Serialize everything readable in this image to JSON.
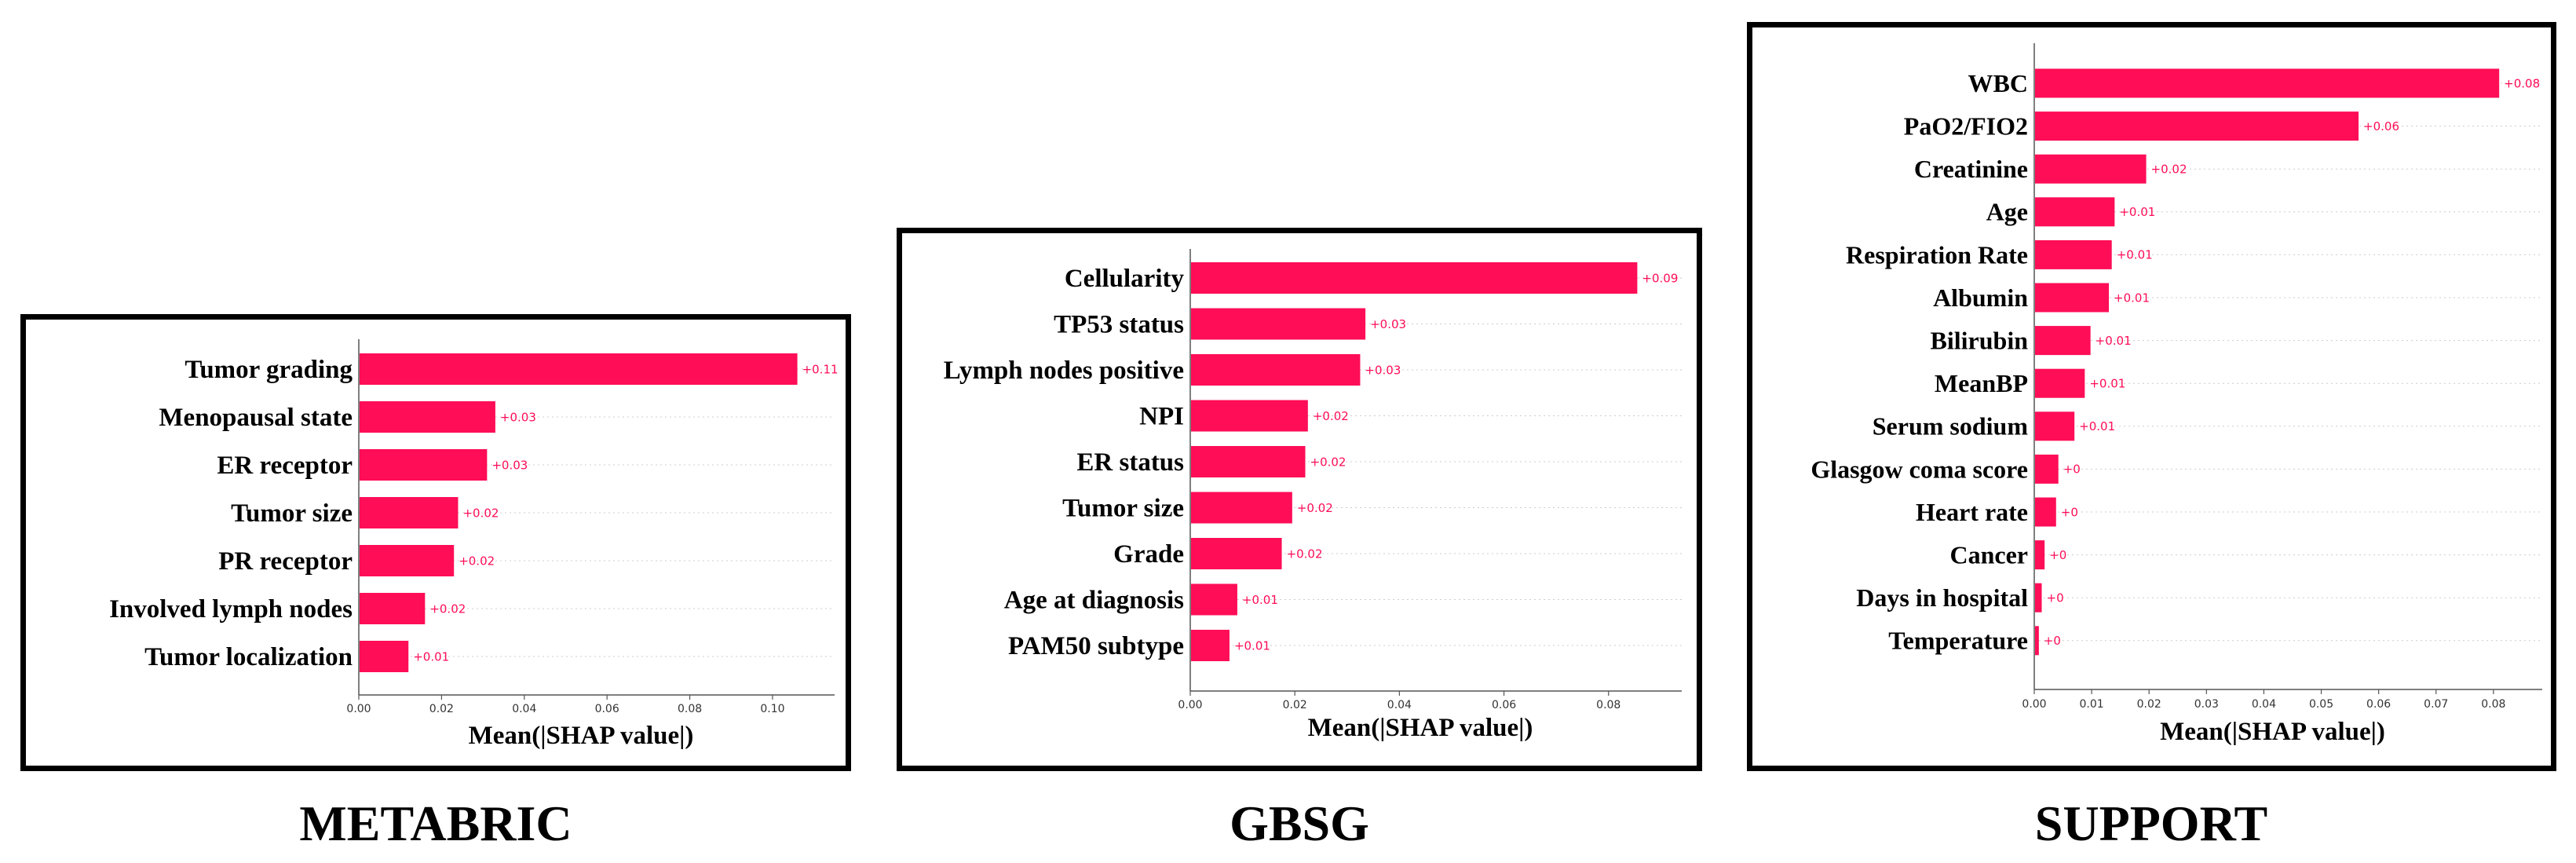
{
  "chart_data": [
    {
      "type": "bar",
      "orientation": "horizontal",
      "title": "METABRIC",
      "xlabel": "Mean(|SHAP value|)",
      "ylabel": "",
      "xlim": [
        0,
        0.115
      ],
      "xticks": [
        "0.00",
        "0.02",
        "0.04",
        "0.06",
        "0.08",
        "0.10"
      ],
      "categories": [
        "Tumor grading",
        "Menopausal state",
        "ER receptor",
        "Tumor size",
        "PR receptor",
        "Involved lymph nodes",
        "Tumor localization"
      ],
      "values": [
        0.106,
        0.033,
        0.031,
        0.024,
        0.023,
        0.016,
        0.012
      ],
      "value_labels": [
        "+0.11",
        "+0.03",
        "+0.03",
        "+0.02",
        "+0.02",
        "+0.02",
        "+0.01"
      ],
      "bar_color": "#ff0d57",
      "grid": "horizontal dotted"
    },
    {
      "type": "bar",
      "orientation": "horizontal",
      "title": "GBSG",
      "xlabel": "Mean(|SHAP value|)",
      "ylabel": "",
      "xlim": [
        0,
        0.094
      ],
      "xticks": [
        "0.00",
        "0.02",
        "0.04",
        "0.06",
        "0.08"
      ],
      "categories": [
        "Cellularity",
        "TP53 status",
        "Lymph nodes positive",
        "NPI",
        "ER status",
        "Tumor size",
        "Grade",
        "Age at diagnosis",
        "PAM50 subtype"
      ],
      "values": [
        0.0855,
        0.0335,
        0.0325,
        0.0225,
        0.022,
        0.0195,
        0.0175,
        0.009,
        0.0075
      ],
      "value_labels": [
        "+0.09",
        "+0.03",
        "+0.03",
        "+0.02",
        "+0.02",
        "+0.02",
        "+0.02",
        "+0.01",
        "+0.01"
      ],
      "bar_color": "#ff0d57",
      "grid": "horizontal dotted"
    },
    {
      "type": "bar",
      "orientation": "horizontal",
      "title": "SUPPORT",
      "xlabel": "Mean(|SHAP value|)",
      "ylabel": "",
      "xlim": [
        0,
        0.0885
      ],
      "xticks": [
        "0.00",
        "0.01",
        "0.02",
        "0.03",
        "0.04",
        "0.05",
        "0.06",
        "0.07",
        "0.08"
      ],
      "categories": [
        "WBC",
        "PaO2/FIO2",
        "Creatinine",
        "Age",
        "Respiration Rate",
        "Albumin",
        "Bilirubin",
        "MeanBP",
        "Serum sodium",
        "Glasgow coma score",
        "Heart rate",
        "Cancer",
        "Days in hospital",
        "Temperature"
      ],
      "values": [
        0.081,
        0.0565,
        0.0195,
        0.014,
        0.0135,
        0.013,
        0.0098,
        0.0088,
        0.007,
        0.0042,
        0.0038,
        0.0018,
        0.0013,
        0.0008
      ],
      "value_labels": [
        "+0.08",
        "+0.06",
        "+0.02",
        "+0.01",
        "+0.01",
        "+0.01",
        "+0.01",
        "+0.01",
        "+0.01",
        "+0",
        "+0",
        "+0",
        "+0",
        "+0"
      ],
      "bar_color": "#ff0d57",
      "grid": "horizontal dotted"
    }
  ]
}
